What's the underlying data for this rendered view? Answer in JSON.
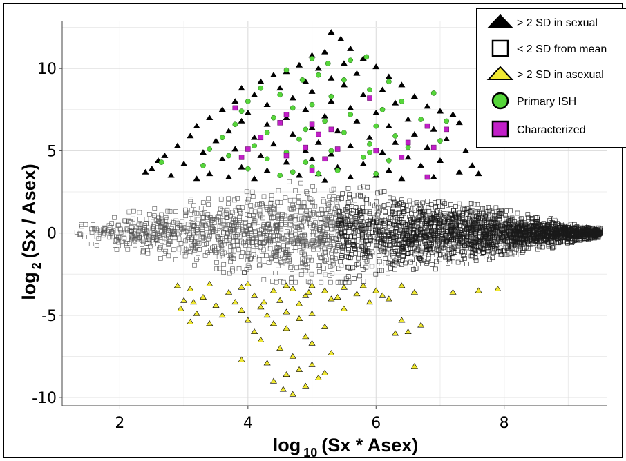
{
  "chart_data": {
    "type": "scatter",
    "title": "",
    "xlabel": {
      "prefix": "log",
      "sub": "10",
      "suffix": "(Sx * Asex)"
    },
    "ylabel": {
      "prefix": "log",
      "sub": "2",
      "suffix": "(Sx / Asex)"
    },
    "xlim": [
      1.1,
      9.6
    ],
    "ylim": [
      -10.5,
      12.9
    ],
    "x_ticks": [
      2,
      4,
      6,
      8
    ],
    "y_ticks": [
      10,
      5,
      0,
      -5,
      -10
    ],
    "x_tick_labels": [
      "2",
      "4",
      "6",
      "8"
    ],
    "y_tick_labels": [
      "10",
      "5",
      "0",
      "-5",
      "-10"
    ],
    "grid": true,
    "legend_position": "top-right",
    "legend": [
      {
        "label": "> 2 SD in sexual",
        "marker": "triangle",
        "color": "#000000"
      },
      {
        "label": "< 2 SD from mean",
        "marker": "square-open",
        "color": "#000000"
      },
      {
        "label": "> 2 SD in asexual",
        "marker": "triangle",
        "color": "#f0e832"
      },
      {
        "label": "Primary ISH",
        "marker": "circle",
        "color": "#56d63a"
      },
      {
        "label": "Characterized",
        "marker": "square",
        "color": "#c21fc8"
      }
    ],
    "series": [
      {
        "name": "> 2 SD in sexual",
        "marker": "triangle",
        "color": "#000000",
        "points": [
          [
            5.3,
            12.2
          ],
          [
            5.45,
            11.8
          ],
          [
            5.6,
            11.2
          ],
          [
            5.2,
            11.0
          ],
          [
            5.0,
            10.8
          ],
          [
            5.8,
            10.6
          ],
          [
            5.5,
            10.3
          ],
          [
            4.8,
            10.2
          ],
          [
            6.0,
            10.1
          ],
          [
            5.1,
            10.0
          ],
          [
            4.6,
            9.8
          ],
          [
            5.7,
            9.7
          ],
          [
            4.4,
            9.6
          ],
          [
            6.2,
            9.5
          ],
          [
            5.3,
            9.4
          ],
          [
            4.2,
            9.2
          ],
          [
            4.9,
            9.2
          ],
          [
            6.4,
            9.0
          ],
          [
            5.5,
            9.0
          ],
          [
            3.9,
            8.8
          ],
          [
            4.5,
            8.8
          ],
          [
            6.1,
            8.7
          ],
          [
            5.0,
            8.6
          ],
          [
            4.1,
            8.4
          ],
          [
            5.8,
            8.4
          ],
          [
            6.6,
            8.3
          ],
          [
            4.7,
            8.2
          ],
          [
            3.8,
            8.0
          ],
          [
            5.3,
            8.0
          ],
          [
            6.3,
            7.9
          ],
          [
            4.3,
            7.8
          ],
          [
            6.8,
            7.7
          ],
          [
            5.6,
            7.6
          ],
          [
            3.6,
            7.5
          ],
          [
            4.9,
            7.5
          ],
          [
            7.0,
            7.4
          ],
          [
            4.0,
            7.3
          ],
          [
            6.0,
            7.3
          ],
          [
            7.2,
            7.2
          ],
          [
            5.2,
            7.1
          ],
          [
            3.4,
            7.0
          ],
          [
            4.6,
            7.0
          ],
          [
            6.5,
            6.9
          ],
          [
            3.9,
            6.8
          ],
          [
            5.7,
            6.8
          ],
          [
            7.3,
            6.7
          ],
          [
            4.3,
            6.6
          ],
          [
            6.2,
            6.5
          ],
          [
            3.2,
            6.5
          ],
          [
            5.0,
            6.4
          ],
          [
            6.9,
            6.3
          ],
          [
            3.7,
            6.2
          ],
          [
            5.4,
            6.2
          ],
          [
            4.7,
            6.0
          ],
          [
            6.6,
            6.0
          ],
          [
            3.1,
            5.9
          ],
          [
            4.1,
            5.8
          ],
          [
            5.9,
            5.8
          ],
          [
            7.1,
            5.7
          ],
          [
            3.5,
            5.6
          ],
          [
            5.1,
            5.5
          ],
          [
            6.3,
            5.5
          ],
          [
            4.4,
            5.4
          ],
          [
            2.9,
            5.3
          ],
          [
            5.6,
            5.3
          ],
          [
            6.8,
            5.2
          ],
          [
            3.8,
            5.1
          ],
          [
            4.9,
            5.0
          ],
          [
            7.4,
            5.0
          ],
          [
            3.3,
            4.9
          ],
          [
            6.1,
            4.9
          ],
          [
            5.3,
            4.8
          ],
          [
            4.2,
            4.7
          ],
          [
            2.7,
            4.7
          ],
          [
            6.5,
            4.6
          ],
          [
            3.6,
            4.5
          ],
          [
            5.0,
            4.5
          ],
          [
            7.0,
            4.4
          ],
          [
            4.6,
            4.3
          ],
          [
            3.0,
            4.2
          ],
          [
            5.8,
            4.2
          ],
          [
            6.7,
            4.1
          ],
          [
            3.9,
            4.0
          ],
          [
            5.4,
            4.0
          ],
          [
            2.5,
            3.9
          ],
          [
            4.3,
            3.8
          ],
          [
            6.2,
            3.8
          ],
          [
            7.3,
            3.7
          ],
          [
            3.4,
            3.6
          ],
          [
            5.1,
            3.6
          ],
          [
            4.8,
            3.5
          ],
          [
            6.0,
            3.5
          ],
          [
            2.8,
            3.5
          ],
          [
            3.7,
            3.4
          ],
          [
            5.6,
            3.4
          ],
          [
            6.9,
            3.4
          ],
          [
            4.1,
            3.3
          ],
          [
            3.2,
            3.3
          ],
          [
            6.4,
            3.3
          ],
          [
            5.2,
            3.2
          ],
          [
            2.6,
            4.4
          ],
          [
            7.5,
            4.1
          ],
          [
            7.6,
            3.6
          ],
          [
            2.4,
            3.7
          ]
        ]
      },
      {
        "name": "< 2 SD from mean",
        "marker": "square-open",
        "color": "#000000",
        "envelope": {
          "x_min": 1.3,
          "x_max": 9.5,
          "x_peak": 4.5,
          "y_upper_peak": 3.2,
          "y_lower_peak": -3.0,
          "point_count": 3400,
          "seed": 7
        }
      },
      {
        "name": "> 2 SD in asexual",
        "marker": "triangle",
        "color": "#f0e832",
        "points": [
          [
            4.7,
            -9.8
          ],
          [
            4.55,
            -9.5
          ],
          [
            4.9,
            -9.3
          ],
          [
            4.4,
            -9.0
          ],
          [
            5.1,
            -8.8
          ],
          [
            4.6,
            -8.6
          ],
          [
            5.2,
            -8.5
          ],
          [
            4.8,
            -8.3
          ],
          [
            5.0,
            -8.0
          ],
          [
            6.6,
            -8.1
          ],
          [
            4.3,
            -7.9
          ],
          [
            3.9,
            -7.7
          ],
          [
            4.7,
            -7.5
          ],
          [
            5.3,
            -7.3
          ],
          [
            4.5,
            -7.0
          ],
          [
            5.0,
            -6.7
          ],
          [
            4.2,
            -6.5
          ],
          [
            4.9,
            -6.3
          ],
          [
            6.3,
            -6.1
          ],
          [
            6.5,
            -6.0
          ],
          [
            4.1,
            -6.0
          ],
          [
            4.6,
            -5.8
          ],
          [
            5.2,
            -5.7
          ],
          [
            6.7,
            -5.6
          ],
          [
            3.4,
            -5.5
          ],
          [
            4.4,
            -5.5
          ],
          [
            3.1,
            -5.4
          ],
          [
            4.0,
            -5.3
          ],
          [
            4.8,
            -5.2
          ],
          [
            6.4,
            -5.3
          ],
          [
            3.6,
            -5.0
          ],
          [
            4.3,
            -5.0
          ],
          [
            3.2,
            -4.9
          ],
          [
            5.0,
            -4.9
          ],
          [
            4.6,
            -4.8
          ],
          [
            3.9,
            -4.7
          ],
          [
            5.5,
            -4.6
          ],
          [
            4.2,
            -4.5
          ],
          [
            3.5,
            -4.4
          ],
          [
            4.8,
            -4.3
          ],
          [
            5.9,
            -4.2
          ],
          [
            3.0,
            -4.1
          ],
          [
            4.5,
            -4.1
          ],
          [
            5.3,
            -4.0
          ],
          [
            6.2,
            -4.0
          ],
          [
            3.3,
            -3.9
          ],
          [
            4.1,
            -3.8
          ],
          [
            4.9,
            -3.8
          ],
          [
            5.7,
            -3.7
          ],
          [
            3.7,
            -3.6
          ],
          [
            4.4,
            -3.5
          ],
          [
            5.2,
            -3.5
          ],
          [
            6.0,
            -3.5
          ],
          [
            3.1,
            -3.4
          ],
          [
            4.7,
            -3.4
          ],
          [
            5.5,
            -3.3
          ],
          [
            3.9,
            -3.3
          ],
          [
            6.6,
            -3.6
          ],
          [
            7.6,
            -3.5
          ],
          [
            7.9,
            -3.4
          ],
          [
            7.2,
            -3.6
          ],
          [
            2.9,
            -3.2
          ],
          [
            4.0,
            -3.1
          ],
          [
            5.0,
            -3.2
          ],
          [
            6.4,
            -3.2
          ],
          [
            3.4,
            -3.1
          ],
          [
            5.8,
            -3.2
          ],
          [
            4.6,
            -3.2
          ],
          [
            2.95,
            -4.6
          ],
          [
            3.15,
            -4.2
          ],
          [
            4.25,
            -4.2
          ],
          [
            5.4,
            -3.9
          ],
          [
            3.8,
            -4.2
          ],
          [
            4.95,
            -3.6
          ],
          [
            6.1,
            -3.8
          ]
        ]
      },
      {
        "name": "Primary ISH",
        "marker": "circle",
        "color": "#56d63a",
        "points": [
          [
            5.0,
            10.6
          ],
          [
            5.85,
            10.7
          ],
          [
            5.6,
            10.5
          ],
          [
            5.25,
            10.3
          ],
          [
            4.6,
            9.9
          ],
          [
            5.1,
            9.6
          ],
          [
            4.85,
            9.3
          ],
          [
            5.5,
            9.3
          ],
          [
            6.2,
            9.2
          ],
          [
            4.2,
            8.8
          ],
          [
            5.9,
            8.7
          ],
          [
            6.9,
            8.5
          ],
          [
            4.5,
            8.4
          ],
          [
            5.3,
            8.3
          ],
          [
            4.0,
            8.0
          ],
          [
            6.4,
            8.0
          ],
          [
            5.0,
            7.8
          ],
          [
            4.7,
            7.6
          ],
          [
            6.1,
            7.5
          ],
          [
            3.9,
            7.4
          ],
          [
            5.6,
            7.2
          ],
          [
            4.4,
            7.0
          ],
          [
            6.7,
            6.9
          ],
          [
            5.2,
            6.8
          ],
          [
            3.8,
            6.6
          ],
          [
            6.0,
            6.5
          ],
          [
            4.9,
            6.3
          ],
          [
            4.3,
            6.1
          ],
          [
            5.5,
            6.1
          ],
          [
            6.3,
            5.9
          ],
          [
            3.6,
            5.8
          ],
          [
            4.8,
            5.7
          ],
          [
            7.0,
            5.6
          ],
          [
            5.9,
            5.4
          ],
          [
            4.1,
            5.3
          ],
          [
            6.5,
            5.2
          ],
          [
            3.4,
            5.1
          ],
          [
            5.3,
            5.0
          ],
          [
            4.6,
            4.9
          ],
          [
            3.7,
            4.7
          ],
          [
            5.8,
            4.6
          ],
          [
            4.3,
            4.5
          ],
          [
            6.2,
            4.4
          ],
          [
            2.65,
            4.3
          ],
          [
            3.3,
            4.1
          ],
          [
            5.0,
            4.0
          ],
          [
            4.0,
            3.9
          ],
          [
            5.4,
            3.8
          ],
          [
            4.7,
            3.7
          ],
          [
            5.1,
            3.6
          ],
          [
            4.5,
            3.5
          ],
          [
            6.0,
            3.6
          ],
          [
            5.9,
            4.9
          ],
          [
            7.1,
            6.8
          ],
          [
            4.9,
            4.3
          ]
        ]
      },
      {
        "name": "Characterized",
        "marker": "square",
        "color": "#c21fc8",
        "points": [
          [
            3.8,
            7.6
          ],
          [
            5.9,
            8.2
          ],
          [
            4.6,
            7.2
          ],
          [
            5.0,
            6.6
          ],
          [
            4.5,
            6.7
          ],
          [
            5.3,
            6.3
          ],
          [
            6.8,
            6.5
          ],
          [
            7.1,
            6.3
          ],
          [
            5.1,
            6.0
          ],
          [
            4.2,
            5.8
          ],
          [
            4.0,
            5.1
          ],
          [
            5.4,
            5.1
          ],
          [
            6.5,
            5.5
          ],
          [
            4.9,
            5.2
          ],
          [
            6.0,
            5.0
          ],
          [
            3.9,
            4.6
          ],
          [
            6.4,
            4.6
          ],
          [
            5.2,
            4.5
          ],
          [
            4.6,
            4.7
          ],
          [
            6.8,
            3.4
          ],
          [
            5.0,
            3.8
          ],
          [
            6.9,
            5.2
          ]
        ]
      }
    ]
  }
}
